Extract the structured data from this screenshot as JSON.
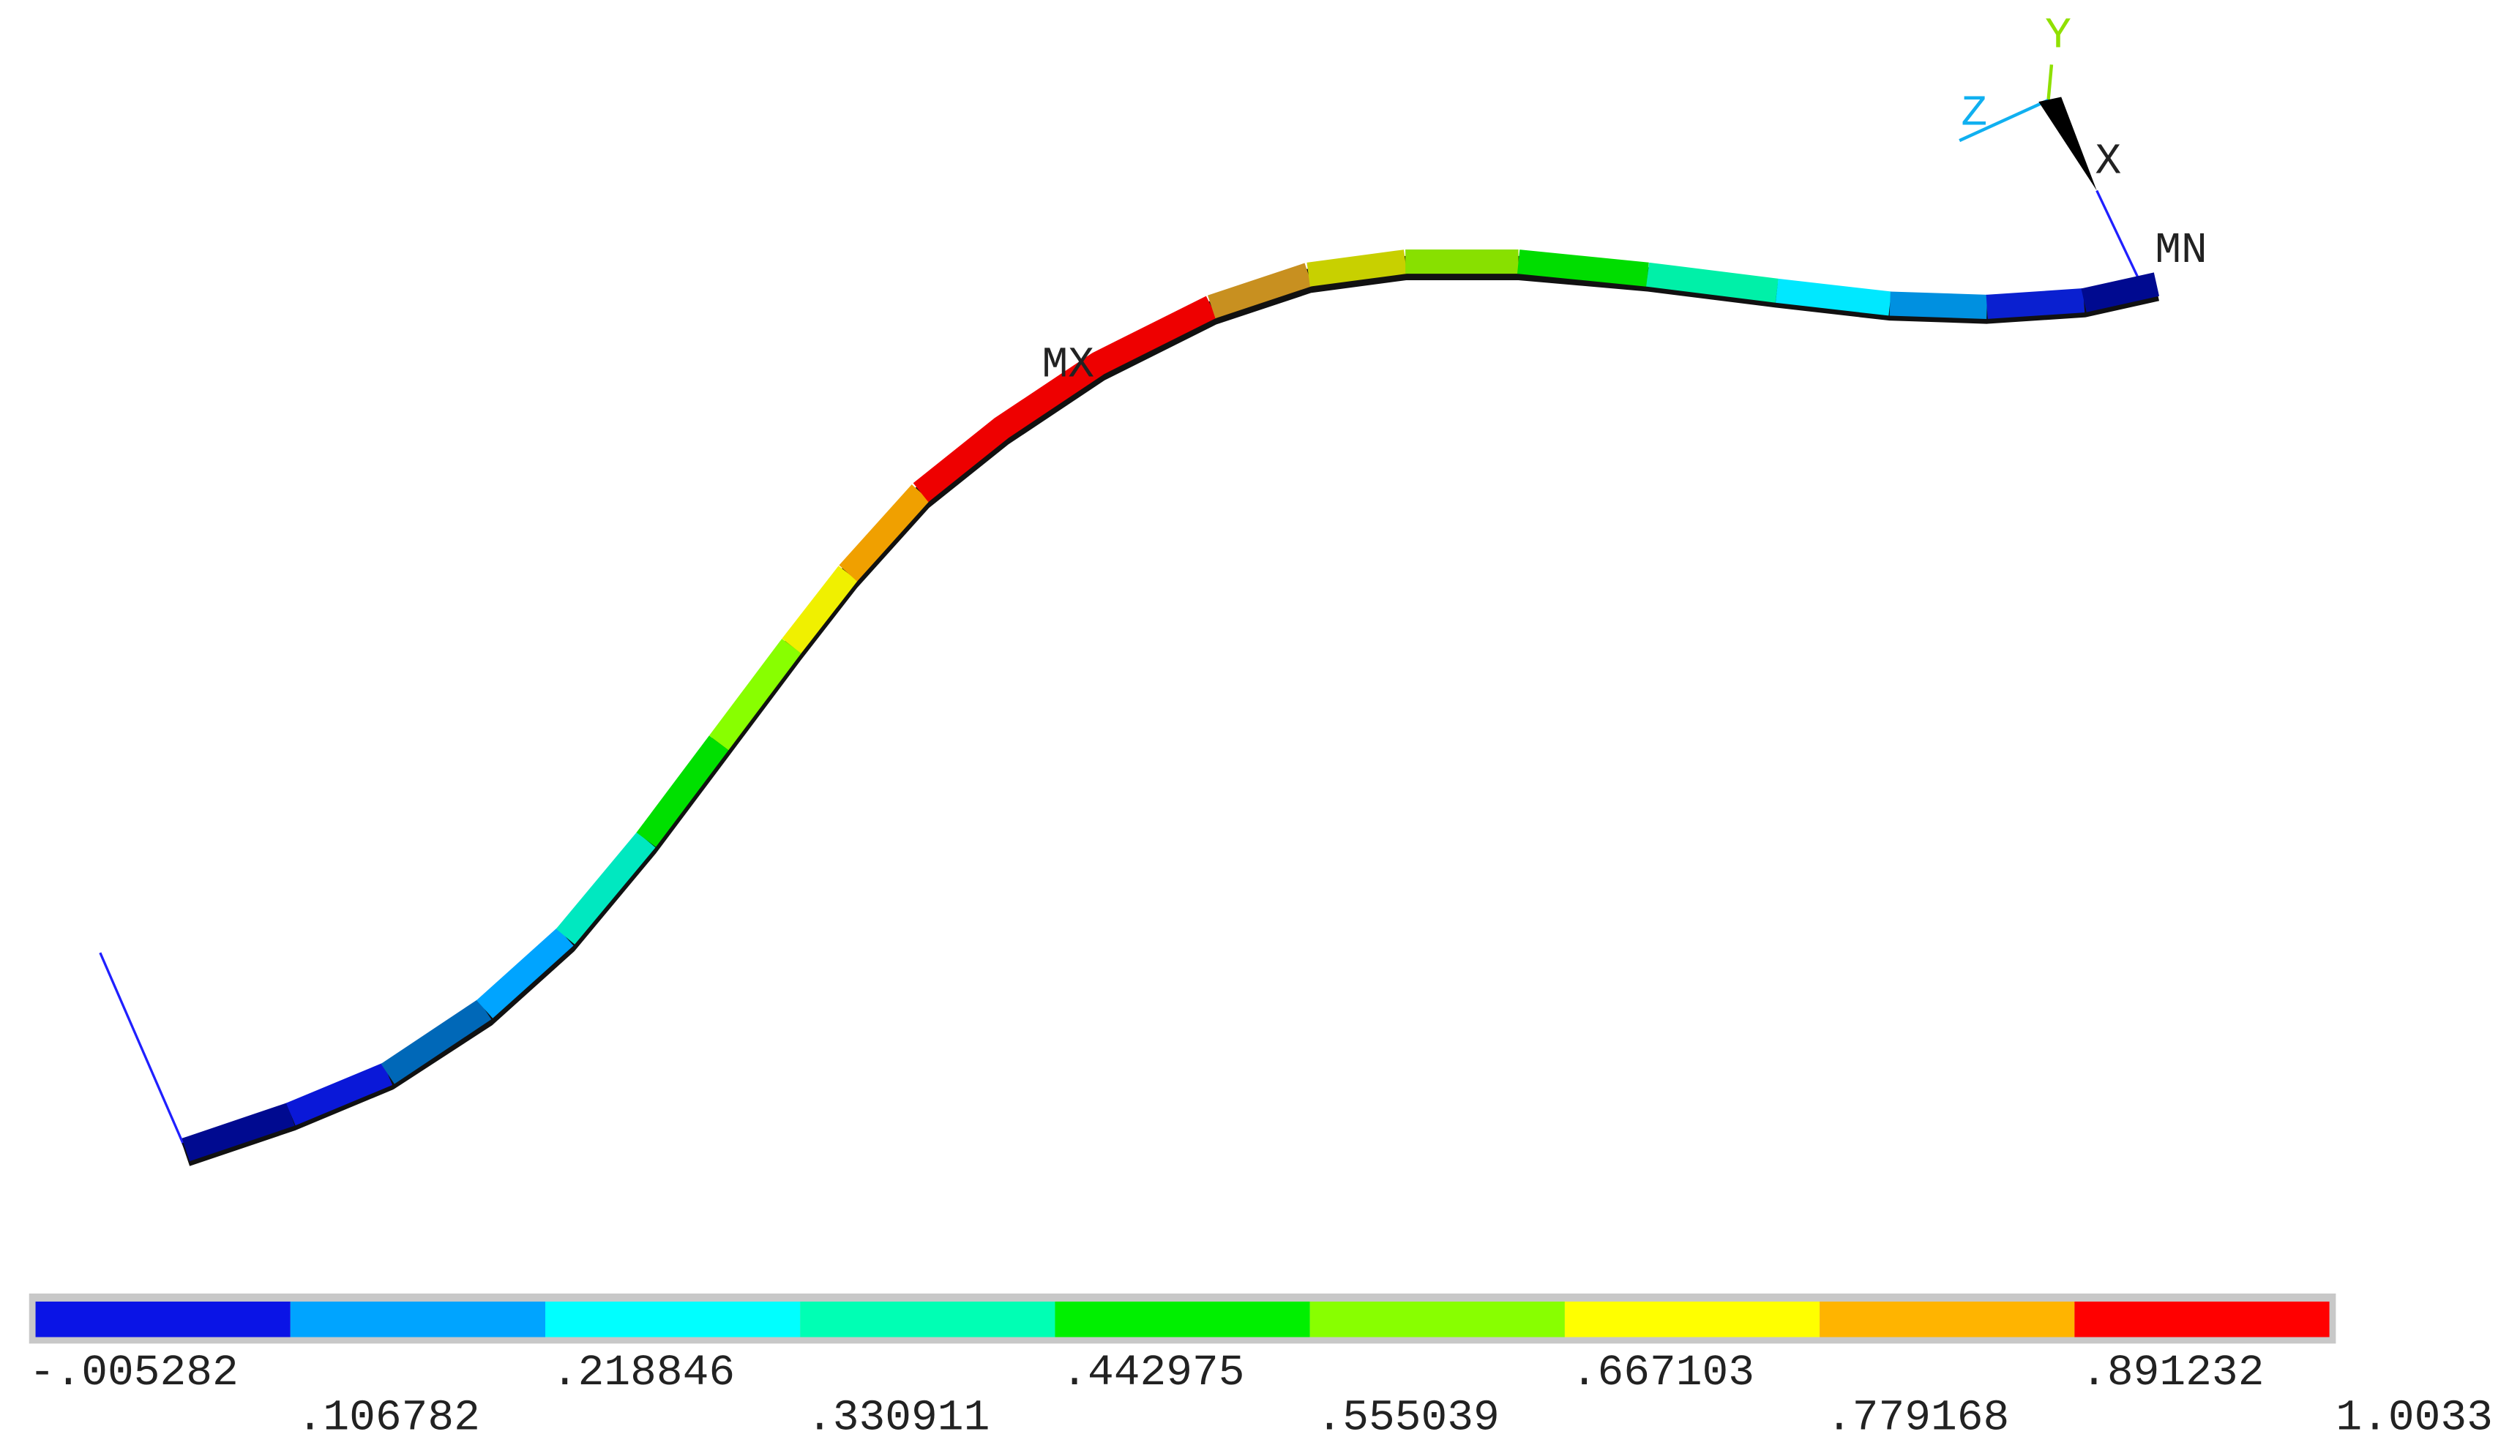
{
  "labels": {
    "max": "MX",
    "min": "MN"
  },
  "triad": {
    "x": "X",
    "y": "Y",
    "z": "Z"
  },
  "legend": {
    "levels": [
      "-.005282",
      ".106782",
      ".218846",
      ".330911",
      ".442975",
      ".555039",
      ".667103",
      ".779168",
      ".891232",
      "1.0033"
    ],
    "colors": [
      "#0a14e6",
      "#00a4ff",
      "#00ffff",
      "#00ffb4",
      "#00f000",
      "#88ff00",
      "#ffff00",
      "#ffb400",
      "#ff0000"
    ]
  }
}
